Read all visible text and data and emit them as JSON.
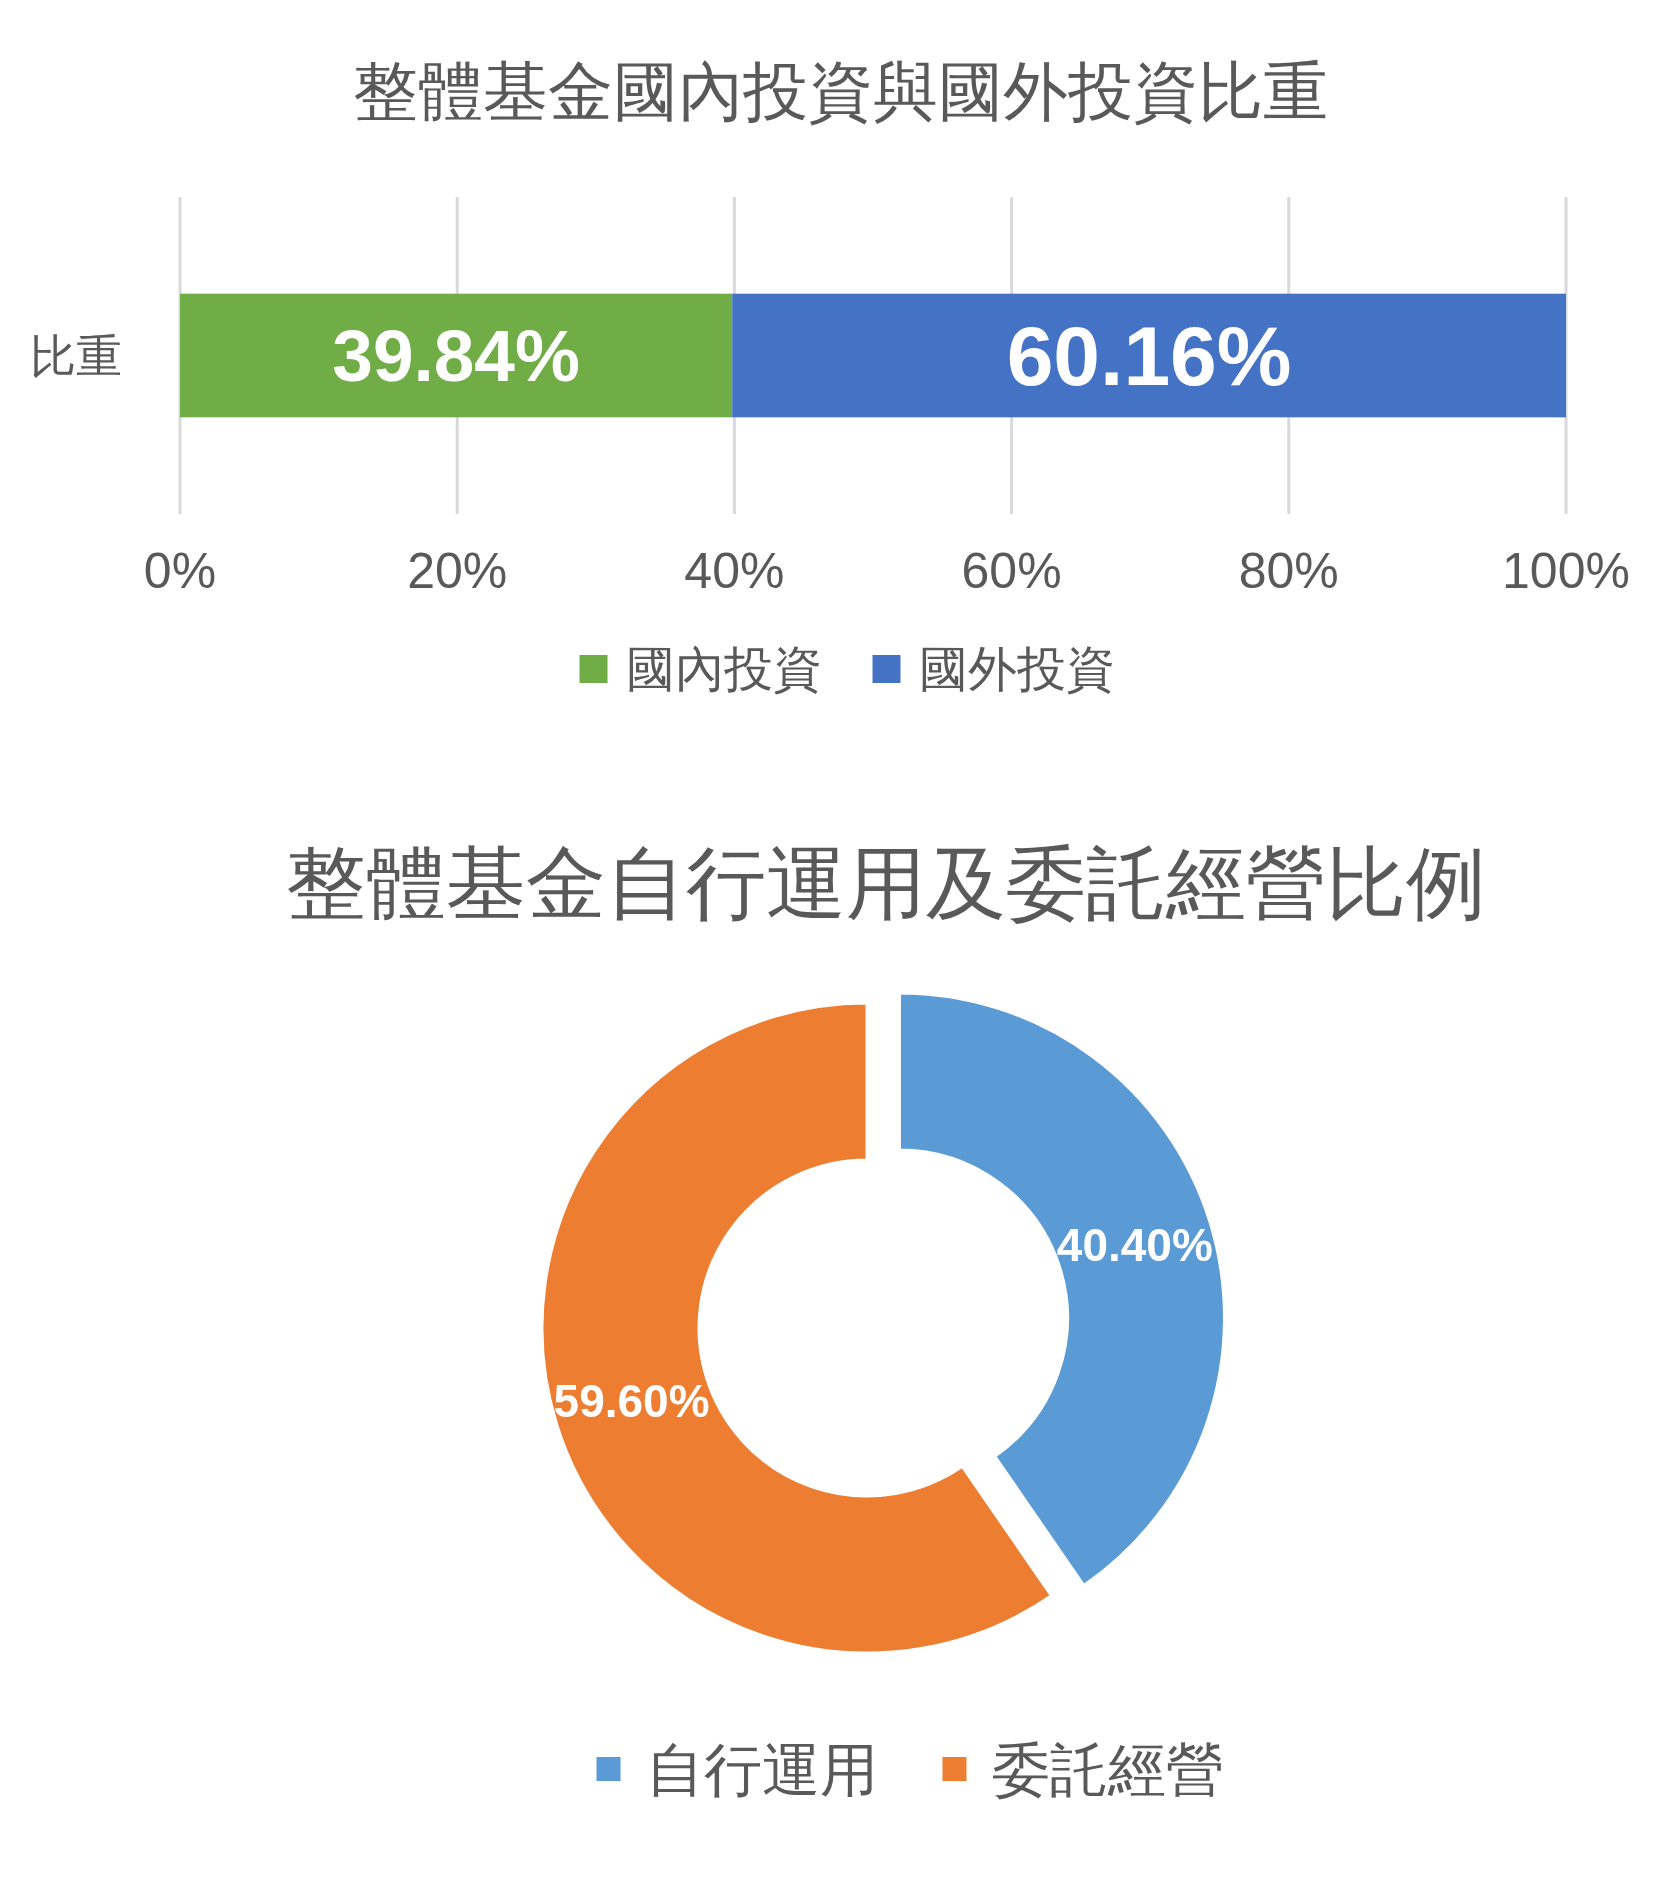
{
  "chart_data": [
    {
      "type": "bar",
      "title": "整體基金國內投資與國外投資比重",
      "orientation": "horizontal",
      "stacked": true,
      "categories": [
        "比重"
      ],
      "series": [
        {
          "name": "國內投資",
          "color": "#70ad47",
          "values": [
            39.84
          ],
          "value_labels": [
            "39.84%"
          ]
        },
        {
          "name": "國外投資",
          "color": "#4472c4",
          "values": [
            60.16
          ],
          "value_labels": [
            "60.16%"
          ]
        }
      ],
      "xlim": [
        0,
        100
      ],
      "xticks": [
        {
          "value": 0,
          "label": "0%"
        },
        {
          "value": 20,
          "label": "20%"
        },
        {
          "value": 40,
          "label": "40%"
        },
        {
          "value": 60,
          "label": "60%"
        },
        {
          "value": 80,
          "label": "80%"
        },
        {
          "value": 100,
          "label": "100%"
        }
      ],
      "grid": "x",
      "legend": "bottom"
    },
    {
      "type": "donut",
      "title": "整體基金自行運用及委託經營比例",
      "categories": [
        "自行運用",
        "委託經營"
      ],
      "values": [
        40.4,
        59.6
      ],
      "colors": [
        "#5b9bd5",
        "#ed7d31"
      ],
      "value_labels": [
        "40.40%",
        "59.60%"
      ],
      "legend": "bottom"
    }
  ]
}
